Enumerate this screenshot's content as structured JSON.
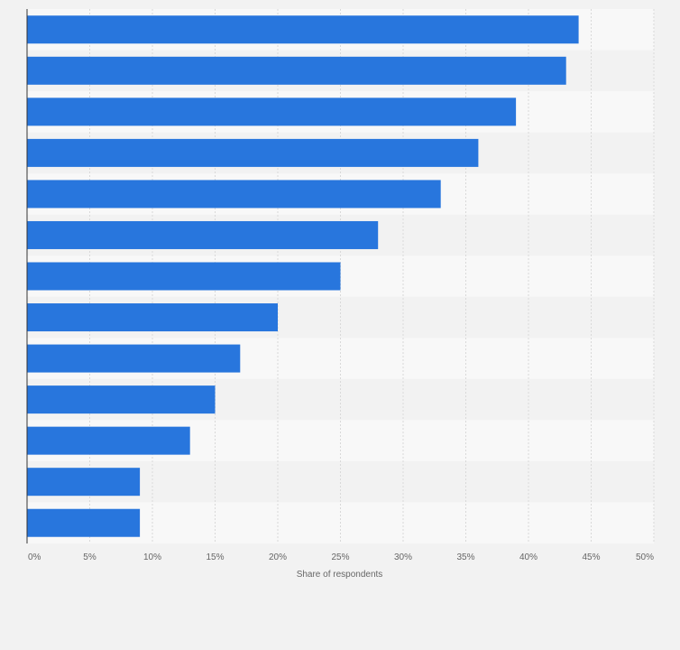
{
  "chart_data": {
    "type": "bar",
    "orientation": "horizontal",
    "categories": [
      "",
      "",
      "",
      "",
      "",
      "",
      "",
      "",
      "",
      "",
      "",
      "",
      ""
    ],
    "values": [
      44,
      43,
      39,
      36,
      33,
      28,
      25,
      20,
      17,
      15,
      13,
      9,
      9
    ],
    "unit": "%",
    "xlabel": "Share of respondents",
    "xlim": [
      0,
      50
    ],
    "ticks": [
      "0%",
      "5%",
      "10%",
      "15%",
      "20%",
      "25%",
      "30%",
      "35%",
      "40%",
      "45%",
      "50%"
    ],
    "grid": true,
    "legend": "none",
    "colors": {
      "bar": "#2876dd",
      "background": "#f2f2f2",
      "band_light": "#f8f8f8",
      "band_dark": "#f2f2f2",
      "grid": "#d9d9d9",
      "axis": "#333333",
      "text": "#666666"
    }
  }
}
